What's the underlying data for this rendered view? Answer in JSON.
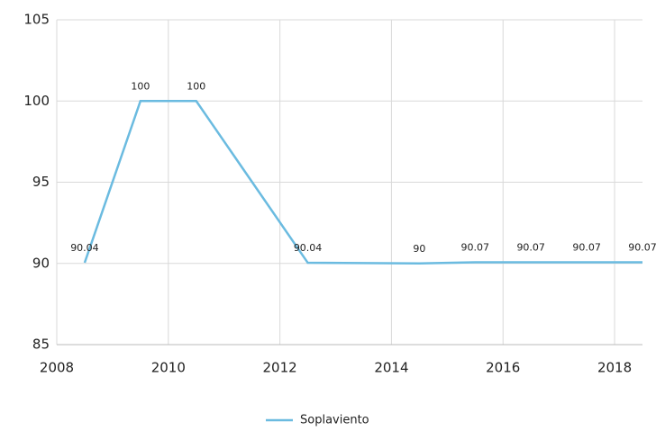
{
  "chart_data": {
    "type": "line",
    "x": [
      2008.5,
      2009.5,
      2010.5,
      2012.5,
      2014.5,
      2015.5,
      2016.5,
      2017.5,
      2018.5
    ],
    "series": [
      {
        "name": "Soplaviento",
        "color": "#6bbbe0",
        "values": [
          90.04,
          100,
          100,
          90.04,
          90,
          90.07,
          90.07,
          90.07,
          90.07
        ]
      }
    ],
    "xlim": [
      2008,
      2018.5
    ],
    "xticks": [
      2008,
      2010,
      2012,
      2014,
      2016,
      2018
    ],
    "ylim": [
      85,
      105
    ],
    "yticks": [
      85,
      90,
      95,
      100,
      105
    ],
    "grid": true,
    "legend": "bottom"
  }
}
